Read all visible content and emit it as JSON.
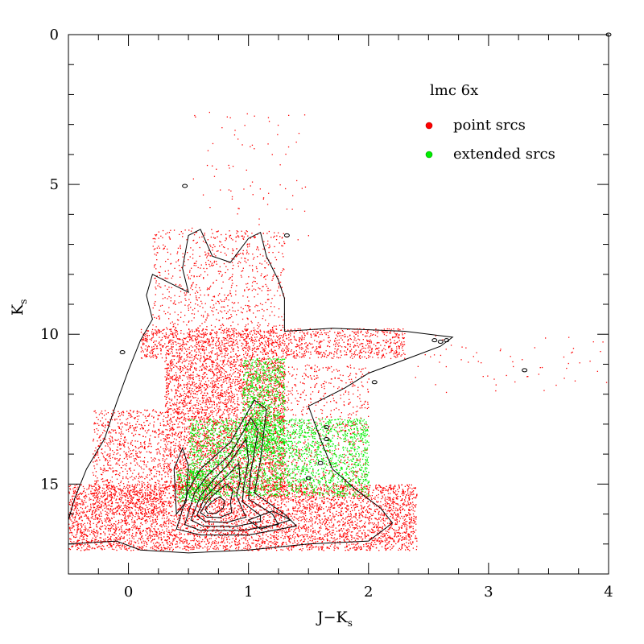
{
  "chart_data": {
    "type": "scatter",
    "xlabel": "J−K",
    "xlabel_sub": "s",
    "ylabel": "K",
    "ylabel_sub": "s",
    "xlim": [
      -0.5,
      4
    ],
    "ylim": [
      18,
      0
    ],
    "y_inverted": true,
    "x_ticks": [
      0,
      1,
      2,
      3,
      4
    ],
    "x_tick_labels": [
      "0",
      "1",
      "2",
      "3",
      "4"
    ],
    "y_ticks": [
      0,
      5,
      10,
      15
    ],
    "y_tick_labels": [
      "0",
      "5",
      "10",
      "15"
    ],
    "grid": false,
    "legend": {
      "title": "lmc 6x",
      "position": "top-right",
      "entries": [
        {
          "label": "point srcs",
          "color": "#ff0000"
        },
        {
          "label": "extended srcs",
          "color": "#00ee00"
        }
      ]
    },
    "series": [
      {
        "name": "point srcs",
        "color": "#ff0000",
        "regions": [
          {
            "x": [
              -0.5,
              2.4
            ],
            "y": [
              15.0,
              17.2
            ],
            "weight": 5000
          },
          {
            "x": [
              0.3,
              1.3
            ],
            "y": [
              10.8,
              15.2
            ],
            "weight": 3500
          },
          {
            "x": [
              -0.3,
              0.3
            ],
            "y": [
              12.5,
              16.0
            ],
            "weight": 900
          },
          {
            "x": [
              0.1,
              2.3
            ],
            "y": [
              9.8,
              10.8
            ],
            "weight": 1400
          },
          {
            "x": [
              0.2,
              1.3
            ],
            "y": [
              6.5,
              10.5
            ],
            "weight": 900
          },
          {
            "x": [
              1.2,
              2.0
            ],
            "y": [
              11.0,
              15.5
            ],
            "weight": 800
          },
          {
            "x": [
              2.3,
              4.0
            ],
            "y": [
              10.0,
              12.0
            ],
            "weight": 60
          },
          {
            "x": [
              0.5,
              1.5
            ],
            "y": [
              2.5,
              7.0
            ],
            "weight": 80
          }
        ]
      },
      {
        "name": "extended srcs",
        "color": "#00ee00",
        "regions": [
          {
            "x": [
              0.5,
              2.0
            ],
            "y": [
              12.8,
              15.4
            ],
            "weight": 2600
          },
          {
            "x": [
              0.95,
              1.3
            ],
            "y": [
              10.8,
              14.0
            ],
            "weight": 900
          },
          {
            "x": [
              0.4,
              0.7
            ],
            "y": [
              14.5,
              15.6
            ],
            "weight": 300
          }
        ]
      }
    ],
    "contours": {
      "color": "#000000",
      "outer_envelope": [
        [
          -0.5,
          17.0
        ],
        [
          -0.1,
          16.9
        ],
        [
          0.1,
          17.2
        ],
        [
          0.5,
          17.3
        ],
        [
          1.0,
          17.2
        ],
        [
          1.5,
          17.0
        ],
        [
          2.0,
          16.9
        ],
        [
          2.2,
          16.3
        ],
        [
          2.1,
          15.8
        ],
        [
          1.9,
          15.2
        ],
        [
          1.7,
          14.5
        ],
        [
          1.6,
          13.5
        ],
        [
          1.5,
          12.4
        ],
        [
          1.8,
          11.8
        ],
        [
          2.0,
          11.3
        ],
        [
          2.6,
          10.4
        ],
        [
          2.7,
          10.1
        ],
        [
          2.3,
          9.9
        ],
        [
          1.7,
          9.8
        ],
        [
          1.3,
          9.9
        ],
        [
          1.3,
          8.8
        ],
        [
          1.25,
          8.2
        ],
        [
          1.15,
          7.4
        ],
        [
          1.1,
          6.6
        ],
        [
          1.0,
          6.8
        ],
        [
          0.85,
          7.6
        ],
        [
          0.7,
          7.4
        ],
        [
          0.6,
          6.5
        ],
        [
          0.5,
          6.7
        ],
        [
          0.45,
          7.8
        ],
        [
          0.5,
          8.6
        ],
        [
          0.35,
          8.3
        ],
        [
          0.2,
          8.0
        ],
        [
          0.15,
          8.7
        ],
        [
          0.2,
          9.5
        ],
        [
          0.1,
          10.2
        ],
        [
          0.0,
          11.2
        ],
        [
          -0.1,
          12.3
        ],
        [
          -0.2,
          13.5
        ],
        [
          -0.35,
          14.5
        ],
        [
          -0.45,
          15.5
        ],
        [
          -0.5,
          16.2
        ]
      ],
      "levels": [
        [
          [
            0.4,
            16.5
          ],
          [
            0.5,
            15.2
          ],
          [
            0.6,
            14.5
          ],
          [
            0.85,
            13.6
          ],
          [
            1.05,
            12.2
          ],
          [
            1.15,
            12.5
          ],
          [
            1.1,
            14.2
          ],
          [
            1.05,
            15.3
          ],
          [
            1.3,
            16.0
          ],
          [
            1.4,
            16.4
          ],
          [
            1.0,
            16.7
          ],
          [
            0.6,
            16.7
          ]
        ],
        [
          [
            0.47,
            16.35
          ],
          [
            0.55,
            15.3
          ],
          [
            0.66,
            14.7
          ],
          [
            0.85,
            14.0
          ],
          [
            1.02,
            12.8
          ],
          [
            1.08,
            13.2
          ],
          [
            1.02,
            14.6
          ],
          [
            1.0,
            15.5
          ],
          [
            1.2,
            16.0
          ],
          [
            1.25,
            16.35
          ],
          [
            0.95,
            16.55
          ],
          [
            0.6,
            16.55
          ]
        ],
        [
          [
            0.52,
            16.2
          ],
          [
            0.6,
            15.4
          ],
          [
            0.7,
            14.9
          ],
          [
            0.84,
            14.3
          ],
          [
            0.98,
            13.5
          ],
          [
            1.0,
            14.2
          ],
          [
            0.96,
            15.1
          ],
          [
            0.95,
            15.6
          ],
          [
            1.1,
            16.05
          ],
          [
            1.1,
            16.25
          ],
          [
            0.88,
            16.42
          ],
          [
            0.62,
            16.4
          ]
        ],
        [
          [
            0.57,
            16.05
          ],
          [
            0.63,
            15.5
          ],
          [
            0.72,
            15.1
          ],
          [
            0.83,
            14.7
          ],
          [
            0.92,
            14.3
          ],
          [
            0.93,
            14.9
          ],
          [
            0.9,
            15.4
          ],
          [
            0.95,
            15.85
          ],
          [
            0.98,
            16.1
          ],
          [
            0.82,
            16.28
          ],
          [
            0.64,
            16.25
          ]
        ],
        [
          [
            0.6,
            15.95
          ],
          [
            0.66,
            15.55
          ],
          [
            0.74,
            15.25
          ],
          [
            0.82,
            15.0
          ],
          [
            0.87,
            15.2
          ],
          [
            0.85,
            15.6
          ],
          [
            0.86,
            15.95
          ],
          [
            0.76,
            16.12
          ],
          [
            0.65,
            16.1
          ]
        ],
        [
          [
            0.64,
            15.85
          ],
          [
            0.69,
            15.6
          ],
          [
            0.76,
            15.42
          ],
          [
            0.8,
            15.55
          ],
          [
            0.79,
            15.8
          ],
          [
            0.73,
            15.98
          ],
          [
            0.66,
            15.98
          ]
        ],
        [
          [
            0.4,
            16.0
          ],
          [
            0.38,
            14.5
          ],
          [
            0.45,
            13.8
          ],
          [
            0.5,
            14.4
          ],
          [
            0.48,
            15.6
          ]
        ],
        [
          [
            1.0,
            16.2
          ],
          [
            1.2,
            15.9
          ],
          [
            1.35,
            16.2
          ],
          [
            1.1,
            16.5
          ]
        ]
      ],
      "islands": [
        [
          0.47,
          5.05
        ],
        [
          1.32,
          6.7
        ],
        [
          2.55,
          10.2
        ],
        [
          2.6,
          10.25
        ],
        [
          2.65,
          10.2
        ],
        [
          3.3,
          11.2
        ],
        [
          4.0,
          0.0
        ],
        [
          1.65,
          13.1
        ],
        [
          1.65,
          13.5
        ],
        [
          2.05,
          11.6
        ],
        [
          1.6,
          14.3
        ],
        [
          1.5,
          14.8
        ],
        [
          -0.05,
          10.6
        ]
      ]
    }
  }
}
